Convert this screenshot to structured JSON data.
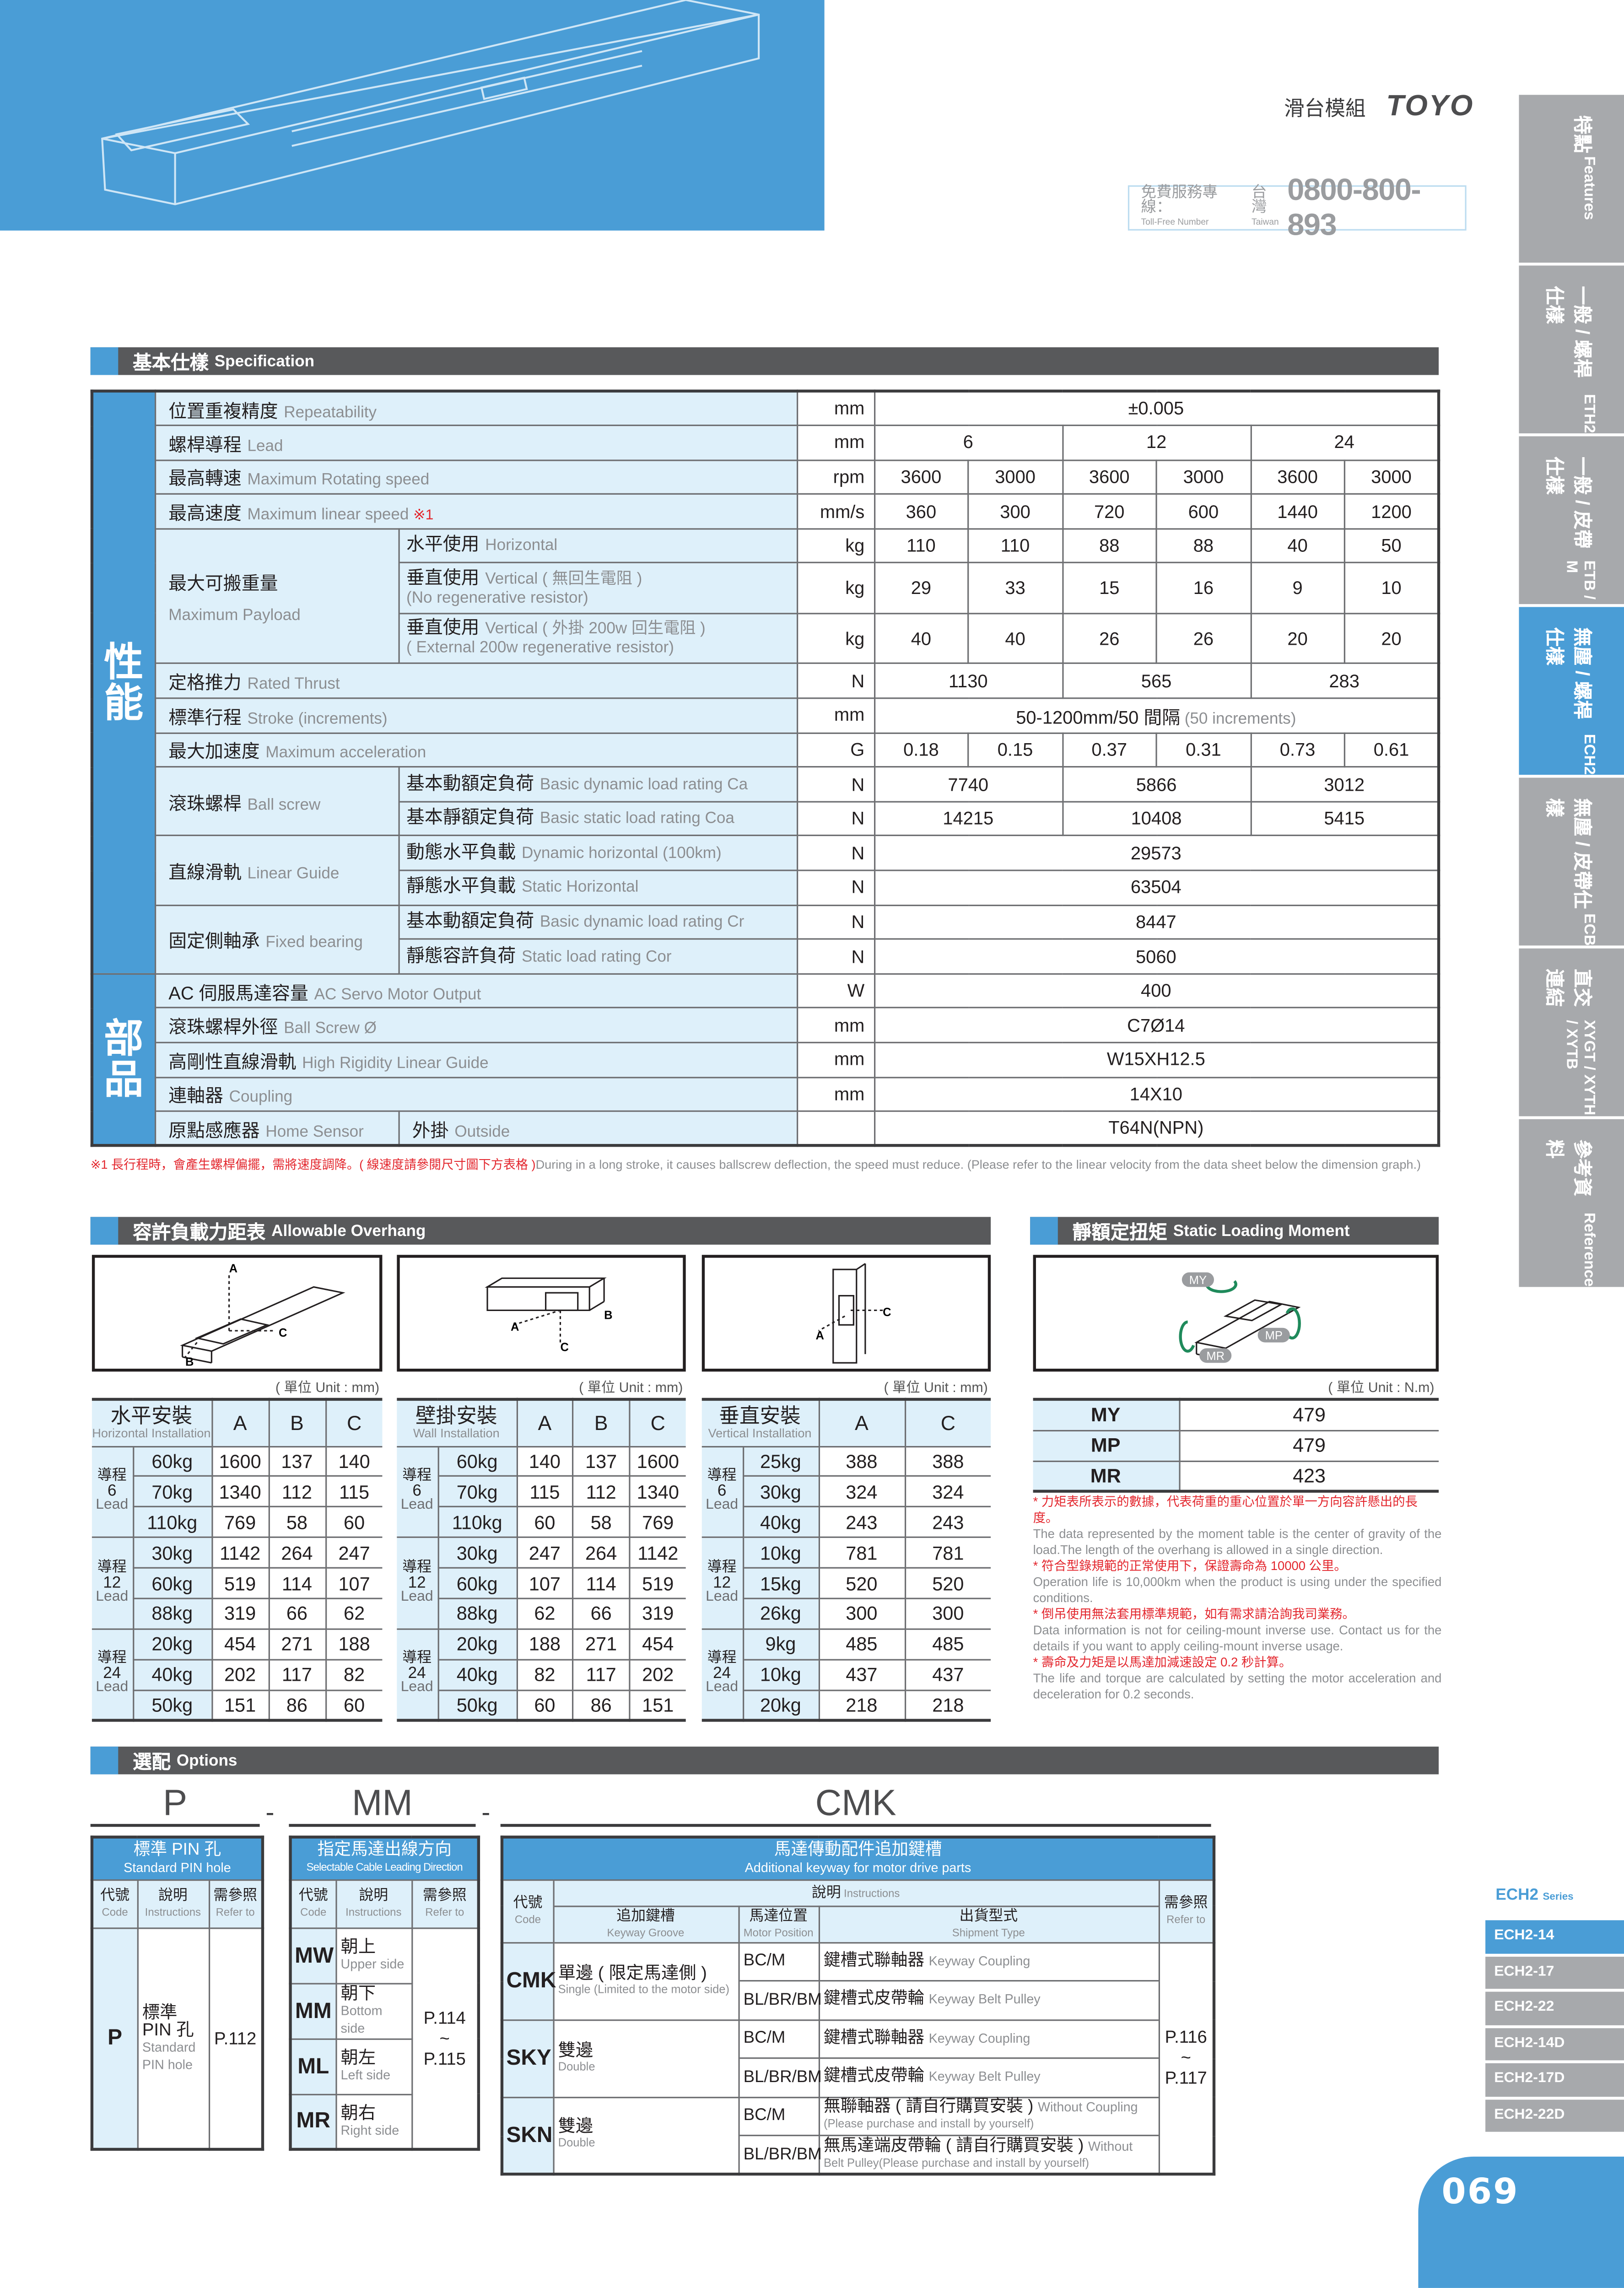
{
  "header": {
    "category": "滑台模組",
    "logo": "TOYO",
    "tollfree": {
      "label_zh": "免費服務專線：",
      "label_en": "Toll-Free Number",
      "region_zh": "台灣",
      "region_en": "Taiwan",
      "number": "0800-800-893"
    }
  },
  "side_tabs": [
    {
      "zh": "特點",
      "en": "Features",
      "active": false
    },
    {
      "zh": "一般 / 螺桿仕樣",
      "en": "ETH2",
      "active": false
    },
    {
      "zh": "一般 / 皮帶仕樣",
      "en": "ETB / M",
      "active": false
    },
    {
      "zh": "無塵 / 螺桿仕樣",
      "en": "ECH2",
      "active": true
    },
    {
      "zh": "無塵 / 皮帶仕樣",
      "en": "ECB",
      "active": false
    },
    {
      "zh": "直交連結",
      "en": "XYGT / XYTH / XYTB",
      "active": false
    },
    {
      "zh": "參考資料",
      "en": "Reference",
      "active": false
    }
  ],
  "spec": {
    "title_zh": "基本仕樣",
    "title_en": "Specification",
    "groups": [
      {
        "zh": "最大可搬重量",
        "en": "Maximum Payload"
      },
      {
        "zh": "滾珠螺桿",
        "en": "Ball screw"
      },
      {
        "zh": "直線滑軌",
        "en": "Linear Guide"
      },
      {
        "zh": "固定側軸承",
        "en": "Fixed bearing"
      }
    ],
    "rows": [
      {
        "cat": "性能",
        "zh": "位置重複精度",
        "en": "Repeatability",
        "unit": "mm",
        "cells": [
          {
            "v": "±0.005",
            "span": 6
          }
        ]
      },
      {
        "cat": "性能",
        "zh": "螺桿導程",
        "en": "Lead",
        "unit": "mm",
        "cells": [
          {
            "v": "6",
            "span": 2
          },
          {
            "v": "12",
            "span": 2
          },
          {
            "v": "24",
            "span": 2
          }
        ]
      },
      {
        "cat": "性能",
        "zh": "最高轉速",
        "en": "Maximum Rotating speed",
        "unit": "rpm",
        "cells": [
          {
            "v": "3600"
          },
          {
            "v": "3000"
          },
          {
            "v": "3600"
          },
          {
            "v": "3000"
          },
          {
            "v": "3600"
          },
          {
            "v": "3000"
          }
        ]
      },
      {
        "cat": "性能",
        "zh": "最高速度",
        "en": "Maximum linear speed",
        "mark": "※1",
        "unit": "mm/s",
        "cells": [
          {
            "v": "360"
          },
          {
            "v": "300"
          },
          {
            "v": "720"
          },
          {
            "v": "600"
          },
          {
            "v": "1440"
          },
          {
            "v": "1200"
          }
        ]
      },
      {
        "cat": "性能",
        "group": 0,
        "zh": "水平使用",
        "en": "Horizontal",
        "unit": "kg",
        "cells": [
          {
            "v": "110"
          },
          {
            "v": "110"
          },
          {
            "v": "88"
          },
          {
            "v": "88"
          },
          {
            "v": "40"
          },
          {
            "v": "50"
          }
        ]
      },
      {
        "cat": "性能",
        "group": 0,
        "zh": "垂直使用",
        "en": "Vertical ( 無回生電阻 )",
        "en2": "(No regenerative resistor)",
        "unit": "kg",
        "cells": [
          {
            "v": "29"
          },
          {
            "v": "33"
          },
          {
            "v": "15"
          },
          {
            "v": "16"
          },
          {
            "v": "9"
          },
          {
            "v": "10"
          }
        ]
      },
      {
        "cat": "性能",
        "group": 0,
        "zh": "垂直使用",
        "en": "Vertical ( 外掛 200w 回生電阻 )",
        "en2": "( External 200w regenerative resistor)",
        "unit": "kg",
        "cells": [
          {
            "v": "40"
          },
          {
            "v": "40"
          },
          {
            "v": "26"
          },
          {
            "v": "26"
          },
          {
            "v": "20"
          },
          {
            "v": "20"
          }
        ]
      },
      {
        "cat": "性能",
        "zh": "定格推力",
        "en": "Rated Thrust",
        "unit": "N",
        "cells": [
          {
            "v": "1130",
            "span": 2
          },
          {
            "v": "565",
            "span": 2
          },
          {
            "v": "283",
            "span": 2
          }
        ]
      },
      {
        "cat": "性能",
        "zh": "標準行程",
        "en": "Stroke (increments)",
        "unit": "mm",
        "cells": [
          {
            "v": "50-1200mm/50 間隔",
            "note": "(50 increments)",
            "span": 6
          }
        ]
      },
      {
        "cat": "性能",
        "zh": "最大加速度",
        "en": "Maximum acceleration",
        "unit": "G",
        "cells": [
          {
            "v": "0.18"
          },
          {
            "v": "0.15"
          },
          {
            "v": "0.37"
          },
          {
            "v": "0.31"
          },
          {
            "v": "0.73"
          },
          {
            "v": "0.61"
          }
        ]
      },
      {
        "cat": "性能",
        "group": 1,
        "zh": "基本動額定負荷",
        "en": "Basic dynamic load rating Ca",
        "unit": "N",
        "cells": [
          {
            "v": "7740",
            "span": 2
          },
          {
            "v": "5866",
            "span": 2
          },
          {
            "v": "3012",
            "span": 2
          }
        ]
      },
      {
        "cat": "性能",
        "group": 1,
        "zh": "基本靜額定負荷",
        "en": "Basic static load rating Coa",
        "unit": "N",
        "cells": [
          {
            "v": "14215",
            "span": 2
          },
          {
            "v": "10408",
            "span": 2
          },
          {
            "v": "5415",
            "span": 2
          }
        ]
      },
      {
        "cat": "性能",
        "group": 2,
        "zh": "動態水平負載",
        "en": "Dynamic horizontal (100km)",
        "unit": "N",
        "cells": [
          {
            "v": "29573",
            "span": 6
          }
        ]
      },
      {
        "cat": "性能",
        "group": 2,
        "zh": "靜態水平負載",
        "en": "Static Horizontal",
        "unit": "N",
        "cells": [
          {
            "v": "63504",
            "span": 6
          }
        ]
      },
      {
        "cat": "性能",
        "group": 3,
        "zh": "基本動額定負荷",
        "en": "Basic dynamic load rating Cr",
        "unit": "N",
        "cells": [
          {
            "v": "8447",
            "span": 6
          }
        ]
      },
      {
        "cat": "性能",
        "group": 3,
        "zh": "靜態容許負荷",
        "en": "Static load rating Cor",
        "unit": "N",
        "cells": [
          {
            "v": "5060",
            "span": 6
          }
        ]
      },
      {
        "cat": "部品",
        "zh": "AC 伺服馬達容量",
        "en": "AC Servo Motor Output",
        "unit": "W",
        "cells": [
          {
            "v": "400",
            "span": 6
          }
        ]
      },
      {
        "cat": "部品",
        "zh": "滾珠螺桿外徑",
        "en": "Ball Screw Ø",
        "unit": "mm",
        "cells": [
          {
            "v": "C7Ø14",
            "span": 6
          }
        ]
      },
      {
        "cat": "部品",
        "zh": "高剛性直線滑軌",
        "en": "High Rigidity Linear Guide",
        "unit": "mm",
        "cells": [
          {
            "v": "W15XH12.5",
            "span": 6
          }
        ]
      },
      {
        "cat": "部品",
        "zh": "連軸器",
        "en": "Coupling",
        "unit": "mm",
        "cells": [
          {
            "v": "14X10",
            "span": 6
          }
        ]
      },
      {
        "cat": "部品",
        "zh": "原點感應器",
        "en": "Home Sensor",
        "sub": {
          "zh": "外掛",
          "en": "Outside"
        },
        "unit": "",
        "cells": [
          {
            "v": "T64N(NPN)",
            "span": 6
          }
        ]
      }
    ],
    "footnote_zh": "※1 長行程時，會產生螺桿偏擺，需將速度調降。( 線速度請參閱尺寸圖下方表格 )",
    "footnote_en": "During in a long stroke, it causes ballscrew deflection, the speed must reduce. (Please refer to the linear velocity from the data sheet below the dimension graph.)"
  },
  "overhang": {
    "title_zh": "容許負載力距表",
    "title_en": "Allowable Overhang",
    "unit": "( 單位 Unit : mm)",
    "tables": [
      {
        "zh": "水平安裝",
        "en": "Horizontal Installation",
        "cols": [
          "A",
          "B",
          "C"
        ],
        "diagram_labels": [
          "A",
          "B",
          "C"
        ],
        "groups": [
          {
            "zh": "導程",
            "lead": "6",
            "en": "Lead",
            "rows": [
              {
                "load": "60kg",
                "v": [
                  "1600",
                  "137",
                  "140"
                ]
              },
              {
                "load": "70kg",
                "v": [
                  "1340",
                  "112",
                  "115"
                ]
              },
              {
                "load": "110kg",
                "v": [
                  "769",
                  "58",
                  "60"
                ]
              }
            ]
          },
          {
            "zh": "導程",
            "lead": "12",
            "en": "Lead",
            "rows": [
              {
                "load": "30kg",
                "v": [
                  "1142",
                  "264",
                  "247"
                ]
              },
              {
                "load": "60kg",
                "v": [
                  "519",
                  "114",
                  "107"
                ]
              },
              {
                "load": "88kg",
                "v": [
                  "319",
                  "66",
                  "62"
                ]
              }
            ]
          },
          {
            "zh": "導程",
            "lead": "24",
            "en": "Lead",
            "rows": [
              {
                "load": "20kg",
                "v": [
                  "454",
                  "271",
                  "188"
                ]
              },
              {
                "load": "40kg",
                "v": [
                  "202",
                  "117",
                  "82"
                ]
              },
              {
                "load": "50kg",
                "v": [
                  "151",
                  "86",
                  "60"
                ]
              }
            ]
          }
        ]
      },
      {
        "zh": "壁掛安裝",
        "en": "Wall Installation",
        "cols": [
          "A",
          "B",
          "C"
        ],
        "diagram_labels": [
          "A",
          "B",
          "C"
        ],
        "groups": [
          {
            "zh": "導程",
            "lead": "6",
            "en": "Lead",
            "rows": [
              {
                "load": "60kg",
                "v": [
                  "140",
                  "137",
                  "1600"
                ]
              },
              {
                "load": "70kg",
                "v": [
                  "115",
                  "112",
                  "1340"
                ]
              },
              {
                "load": "110kg",
                "v": [
                  "60",
                  "58",
                  "769"
                ]
              }
            ]
          },
          {
            "zh": "導程",
            "lead": "12",
            "en": "Lead",
            "rows": [
              {
                "load": "30kg",
                "v": [
                  "247",
                  "264",
                  "1142"
                ]
              },
              {
                "load": "60kg",
                "v": [
                  "107",
                  "114",
                  "519"
                ]
              },
              {
                "load": "88kg",
                "v": [
                  "62",
                  "66",
                  "319"
                ]
              }
            ]
          },
          {
            "zh": "導程",
            "lead": "24",
            "en": "Lead",
            "rows": [
              {
                "load": "20kg",
                "v": [
                  "188",
                  "271",
                  "454"
                ]
              },
              {
                "load": "40kg",
                "v": [
                  "82",
                  "117",
                  "202"
                ]
              },
              {
                "load": "50kg",
                "v": [
                  "60",
                  "86",
                  "151"
                ]
              }
            ]
          }
        ]
      },
      {
        "zh": "垂直安裝",
        "en": "Vertical Installation",
        "cols": [
          "A",
          "C"
        ],
        "diagram_labels": [
          "A",
          "C"
        ],
        "groups": [
          {
            "zh": "導程",
            "lead": "6",
            "en": "Lead",
            "rows": [
              {
                "load": "25kg",
                "v": [
                  "388",
                  "388"
                ]
              },
              {
                "load": "30kg",
                "v": [
                  "324",
                  "324"
                ]
              },
              {
                "load": "40kg",
                "v": [
                  "243",
                  "243"
                ]
              }
            ]
          },
          {
            "zh": "導程",
            "lead": "12",
            "en": "Lead",
            "rows": [
              {
                "load": "10kg",
                "v": [
                  "781",
                  "781"
                ]
              },
              {
                "load": "15kg",
                "v": [
                  "520",
                  "520"
                ]
              },
              {
                "load": "26kg",
                "v": [
                  "300",
                  "300"
                ]
              }
            ]
          },
          {
            "zh": "導程",
            "lead": "24",
            "en": "Lead",
            "rows": [
              {
                "load": "9kg",
                "v": [
                  "485",
                  "485"
                ]
              },
              {
                "load": "10kg",
                "v": [
                  "437",
                  "437"
                ]
              },
              {
                "load": "20kg",
                "v": [
                  "218",
                  "218"
                ]
              }
            ]
          }
        ]
      }
    ]
  },
  "moment": {
    "title_zh": "靜額定扭矩",
    "title_en": "Static Loading Moment",
    "unit": "( 單位 Unit : N.m)",
    "rows": [
      {
        "k": "MY",
        "v": "479"
      },
      {
        "k": "MP",
        "v": "479"
      },
      {
        "k": "MR",
        "v": "423"
      }
    ],
    "notes": [
      {
        "zh": "* 力矩表所表示的數據，代表荷重的重心位置於單一方向容許懸出的長度。",
        "en": "The data represented by the moment table is the center of gravity of the load.The length of the overhang is allowed in a single direction."
      },
      {
        "zh": "* 符合型錄規範的正常使用下，保證壽命為 10000 公里。",
        "en": "Operation life is 10,000km when the product is using under the specified conditions."
      },
      {
        "zh": "* 倒吊使用無法套用標準規範，如有需求請洽詢我司業務。",
        "en": "Data information is not for ceiling-mount inverse use. Contact us for the details if you want to apply ceiling-mount inverse usage."
      },
      {
        "zh": "* 壽命及力矩是以馬達加減速設定 0.2 秒計算。",
        "en": "The life and torque are calculated by setting the motor acceleration and deceleration for 0.2 seconds."
      }
    ]
  },
  "options": {
    "title_zh": "選配",
    "title_en": "Options",
    "codes": [
      "P",
      "MM",
      "CMK"
    ],
    "dash": "-",
    "head": {
      "code_zh": "代號",
      "code_en": "Code",
      "ins_zh": "說明",
      "ins_en": "Instructions",
      "ref_zh": "需參照",
      "ref_en": "Refer to"
    },
    "pin": {
      "title_zh": "標準 PIN 孔",
      "title_en": "Standard PIN hole",
      "code": "P",
      "ins_zh": "標準 PIN 孔",
      "ins_en": "Standard PIN hole",
      "ref": "P.112"
    },
    "cable": {
      "title_zh": "指定馬達出線方向",
      "title_en": "Selectable Cable Leading Direction",
      "rows": [
        {
          "code": "MW",
          "zh": "朝上",
          "en": "Upper side"
        },
        {
          "code": "MM",
          "zh": "朝下",
          "en": "Bottom side"
        },
        {
          "code": "ML",
          "zh": "朝左",
          "en": "Left side"
        },
        {
          "code": "MR",
          "zh": "朝右",
          "en": "Right side"
        }
      ],
      "ref": [
        "P.114",
        "~",
        "P.115"
      ]
    },
    "keyway": {
      "title_zh": "馬達傳動配件追加鍵槽",
      "title_en": "Additional keyway for motor drive parts",
      "sub": {
        "groove_zh": "追加鍵槽",
        "groove_en": "Keyway Groove",
        "pos_zh": "馬達位置",
        "pos_en": "Motor Position",
        "ship_zh": "出貨型式",
        "ship_en": "Shipment Type"
      },
      "rows": [
        {
          "code": "CMK",
          "groove_zh": "單邊 ( 限定馬達側 )",
          "groove_en": "Single (Limited to the motor side)",
          "items": [
            {
              "pos": "BC/M",
              "zh": "鍵槽式聯軸器",
              "en": "Keyway Coupling"
            },
            {
              "pos": "BL/BR/BM",
              "zh": "鍵槽式皮帶輪",
              "en": "Keyway Belt Pulley"
            }
          ]
        },
        {
          "code": "SKY",
          "groove_zh": "雙邊",
          "groove_en": "Double",
          "items": [
            {
              "pos": "BC/M",
              "zh": "鍵槽式聯軸器",
              "en": "Keyway Coupling"
            },
            {
              "pos": "BL/BR/BM",
              "zh": "鍵槽式皮帶輪",
              "en": "Keyway Belt Pulley"
            }
          ]
        },
        {
          "code": "SKN",
          "groove_zh": "雙邊",
          "groove_en": "Double",
          "items": [
            {
              "pos": "BC/M",
              "zh": "無聯軸器 ( 請自行購買安裝 )",
              "en": "Without Coupling",
              "en2": "(Please purchase and install by yourself)"
            },
            {
              "pos": "BL/BR/BM",
              "zh": "無馬達端皮帶輪 ( 請自行購買安裝 )",
              "en": "Without",
              "en2": "Belt Pulley(Please purchase and install by yourself)"
            }
          ]
        }
      ],
      "ref": [
        "P.116",
        "~",
        "P.117"
      ]
    }
  },
  "series": {
    "name": "ECH2",
    "label": "Series",
    "items": [
      {
        "label": "ECH2-14",
        "active": true
      },
      {
        "label": "ECH2-17"
      },
      {
        "label": "ECH2-22"
      },
      {
        "label": "ECH2-14D"
      },
      {
        "label": "ECH2-17D"
      },
      {
        "label": "ECH2-22D"
      }
    ]
  },
  "page_number": "069",
  "colors": {
    "brand_blue": "#4a9dd6",
    "light_blue": "#def0fa",
    "dark_bar": "#58595b",
    "tab_gray": "#a7a9ac",
    "note_red": "#e3262d"
  }
}
